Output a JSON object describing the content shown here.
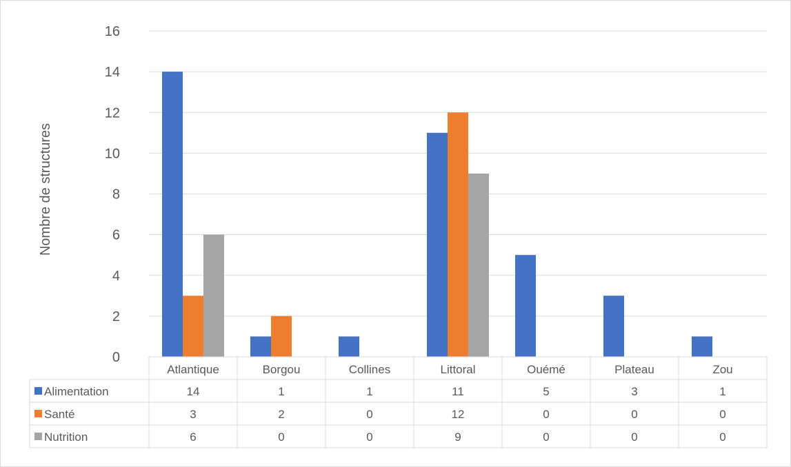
{
  "chart_data": {
    "type": "bar",
    "title": "",
    "xlabel": "",
    "ylabel": "Nombre de structures",
    "ylim": [
      0,
      16
    ],
    "yticks": [
      0,
      2,
      4,
      6,
      8,
      10,
      12,
      14,
      16
    ],
    "grid": true,
    "legend": "data-table",
    "categories": [
      "Atlantique",
      "Borgou",
      "Collines",
      "Littoral",
      "Ouémé",
      "Plateau",
      "Zou"
    ],
    "series": [
      {
        "name": "Alimentation",
        "color": "#4472C4",
        "values": [
          14,
          1,
          1,
          11,
          5,
          3,
          1
        ]
      },
      {
        "name": "Santé",
        "color": "#ED7D31",
        "values": [
          3,
          2,
          0,
          12,
          0,
          0,
          0
        ]
      },
      {
        "name": "Nutrition",
        "color": "#A5A5A5",
        "values": [
          6,
          0,
          0,
          9,
          0,
          0,
          0
        ]
      }
    ]
  }
}
